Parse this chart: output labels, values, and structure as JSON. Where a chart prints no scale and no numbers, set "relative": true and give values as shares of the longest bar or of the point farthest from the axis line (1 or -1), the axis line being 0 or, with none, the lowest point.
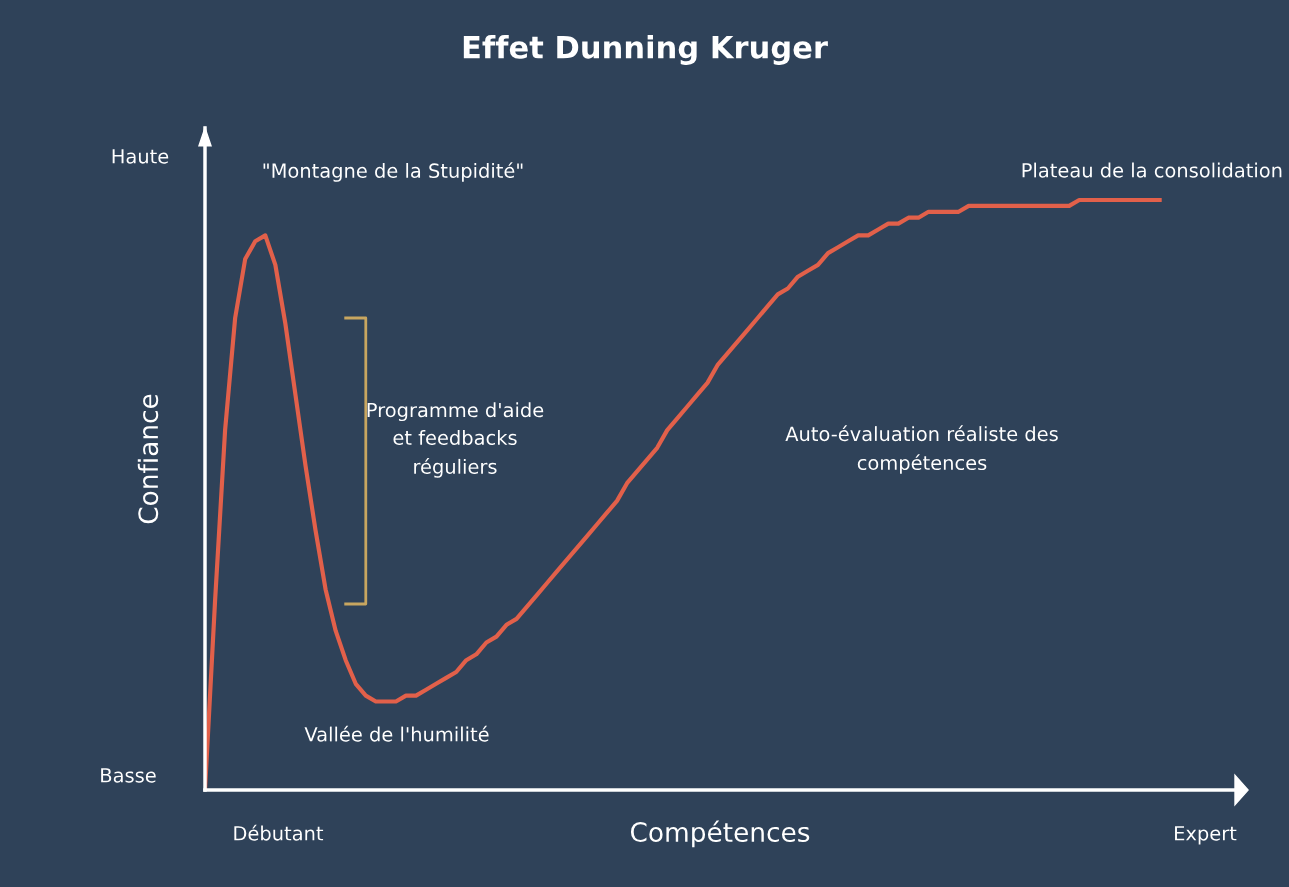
{
  "chart_data": {
    "type": "line",
    "relative": true,
    "title": "Effet Dunning Kruger",
    "xlabel": "Compétences",
    "ylabel": "Confiance",
    "color": "#e2604a",
    "grid": false,
    "legend": false,
    "marker": "none",
    "line_style": "solid",
    "categories": [
      null,
      null,
      null,
      null,
      null,
      null,
      null,
      null,
      null,
      null,
      null,
      null,
      null,
      null,
      null,
      null,
      null,
      null,
      null,
      null,
      null,
      null,
      null,
      null,
      null,
      null,
      null,
      null,
      null,
      null,
      null,
      null,
      null,
      null,
      null,
      null,
      null,
      null,
      null,
      null,
      null,
      null,
      null,
      null,
      null,
      null,
      null,
      null,
      null,
      null,
      null,
      null,
      null,
      null,
      null,
      null,
      null,
      null,
      null,
      null,
      null,
      null,
      null,
      null,
      null,
      null,
      null,
      null,
      null,
      null,
      null,
      null,
      null,
      null,
      null,
      null,
      null,
      null,
      null,
      null,
      null,
      null,
      null,
      null,
      null,
      null,
      null,
      null,
      null,
      null,
      null,
      null,
      null,
      null,
      null,
      null
    ],
    "values": [
      0,
      0.32,
      0.61,
      0.8,
      0.9,
      0.93,
      0.94,
      0.89,
      0.79,
      0.67,
      0.55,
      0.44,
      0.34,
      0.27,
      0.22,
      0.18,
      0.16,
      0.15,
      0.15,
      0.15,
      0.16,
      0.16,
      0.17,
      0.18,
      0.19,
      0.2,
      0.22,
      0.23,
      0.25,
      0.26,
      0.28,
      0.29,
      0.31,
      0.33,
      0.35,
      0.37,
      0.39,
      0.41,
      0.43,
      0.45,
      0.47,
      0.49,
      0.52,
      0.54,
      0.56,
      0.58,
      0.61,
      0.63,
      0.65,
      0.67,
      0.69,
      0.72,
      0.74,
      0.76,
      0.78,
      0.8,
      0.82,
      0.84,
      0.85,
      0.87,
      0.88,
      0.89,
      0.91,
      0.92,
      0.93,
      0.94,
      0.94,
      0.95,
      0.96,
      0.96,
      0.97,
      0.97,
      0.98,
      0.98,
      0.98,
      0.98,
      0.99,
      0.99,
      0.99,
      0.99,
      0.99,
      0.99,
      0.99,
      0.99,
      0.99,
      0.99,
      0.99,
      1.0,
      1.0,
      1.0,
      1.0,
      1.0,
      1.0,
      1.0,
      1.0,
      1.0
    ],
    "annotations": [
      "Haute",
      "Basse",
      "Débutant",
      "Expert",
      "\"Montagne de la Stupidité\"",
      "Plateau de la consolidation",
      "Programme d'aide\net feedbacks\nréguliers",
      "Auto-évaluation réaliste des\ncompétences",
      "Vallée de l'humilité"
    ]
  }
}
